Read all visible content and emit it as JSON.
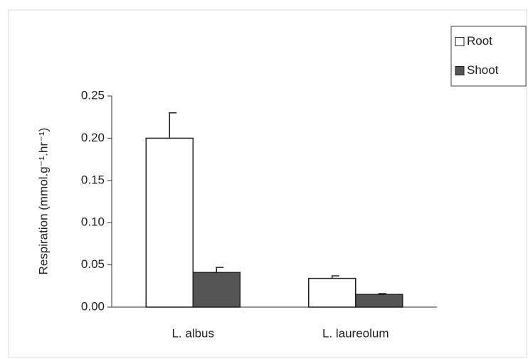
{
  "chart_data": {
    "type": "bar",
    "categories": [
      "L. albus",
      "L. laureolum"
    ],
    "series": [
      {
        "name": "Root",
        "color": "#ffffff",
        "values": [
          0.2,
          0.034
        ],
        "errors": [
          0.03,
          0.003
        ]
      },
      {
        "name": "Shoot",
        "color": "#555555",
        "values": [
          0.041,
          0.015
        ],
        "errors": [
          0.006,
          0.001
        ]
      }
    ],
    "y_label": "Respiration (mmol.g⁻¹.hr⁻¹)",
    "ylim": [
      0,
      0.25
    ],
    "yticks": [
      {
        "value": 0,
        "label": "0.00"
      },
      {
        "value": 0.05,
        "label": "0.05"
      },
      {
        "value": 0.1,
        "label": "0.10"
      },
      {
        "value": 0.15,
        "label": "0.15"
      },
      {
        "value": 0.2,
        "label": "0.20"
      },
      {
        "value": 0.25,
        "label": "0.25"
      }
    ],
    "legend": "top-right"
  }
}
